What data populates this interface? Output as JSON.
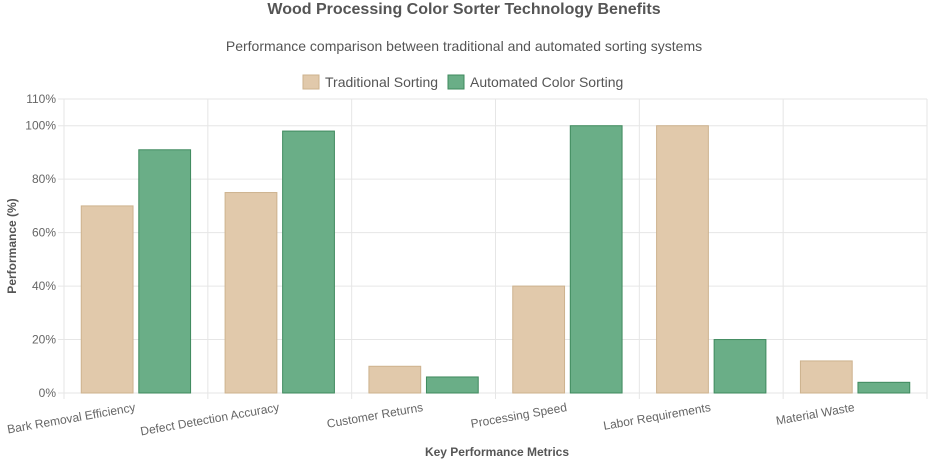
{
  "chart_data": {
    "type": "bar",
    "title": "Wood Processing Color Sorter Technology Benefits",
    "subtitle": "Performance comparison between traditional and automated sorting systems",
    "xlabel": "Key Performance Metrics",
    "ylabel": "Performance (%)",
    "ylim": [
      0,
      110
    ],
    "y_ticks": [
      {
        "value": 0,
        "label": "0%"
      },
      {
        "value": 20,
        "label": "20%"
      },
      {
        "value": 40,
        "label": "40%"
      },
      {
        "value": 60,
        "label": "60%"
      },
      {
        "value": 80,
        "label": "80%"
      },
      {
        "value": 100,
        "label": "100%"
      },
      {
        "value": 110,
        "label": "110%"
      }
    ],
    "categories": [
      "Bark Removal Efficiency",
      "Defect Detection Accuracy",
      "Customer Returns",
      "Processing Speed",
      "Labor Requirements",
      "Material Waste"
    ],
    "series": [
      {
        "name": "Traditional Sorting",
        "values": [
          70,
          75,
          10,
          40,
          100,
          12
        ],
        "fill": "#e1c9ab",
        "stroke": "#cdb28e"
      },
      {
        "name": "Automated Color Sorting",
        "values": [
          91,
          98,
          6,
          100,
          20,
          4
        ],
        "fill": "#6aae87",
        "stroke": "#3f8a5e"
      }
    ],
    "grid": true,
    "legend_position": "top-center"
  }
}
